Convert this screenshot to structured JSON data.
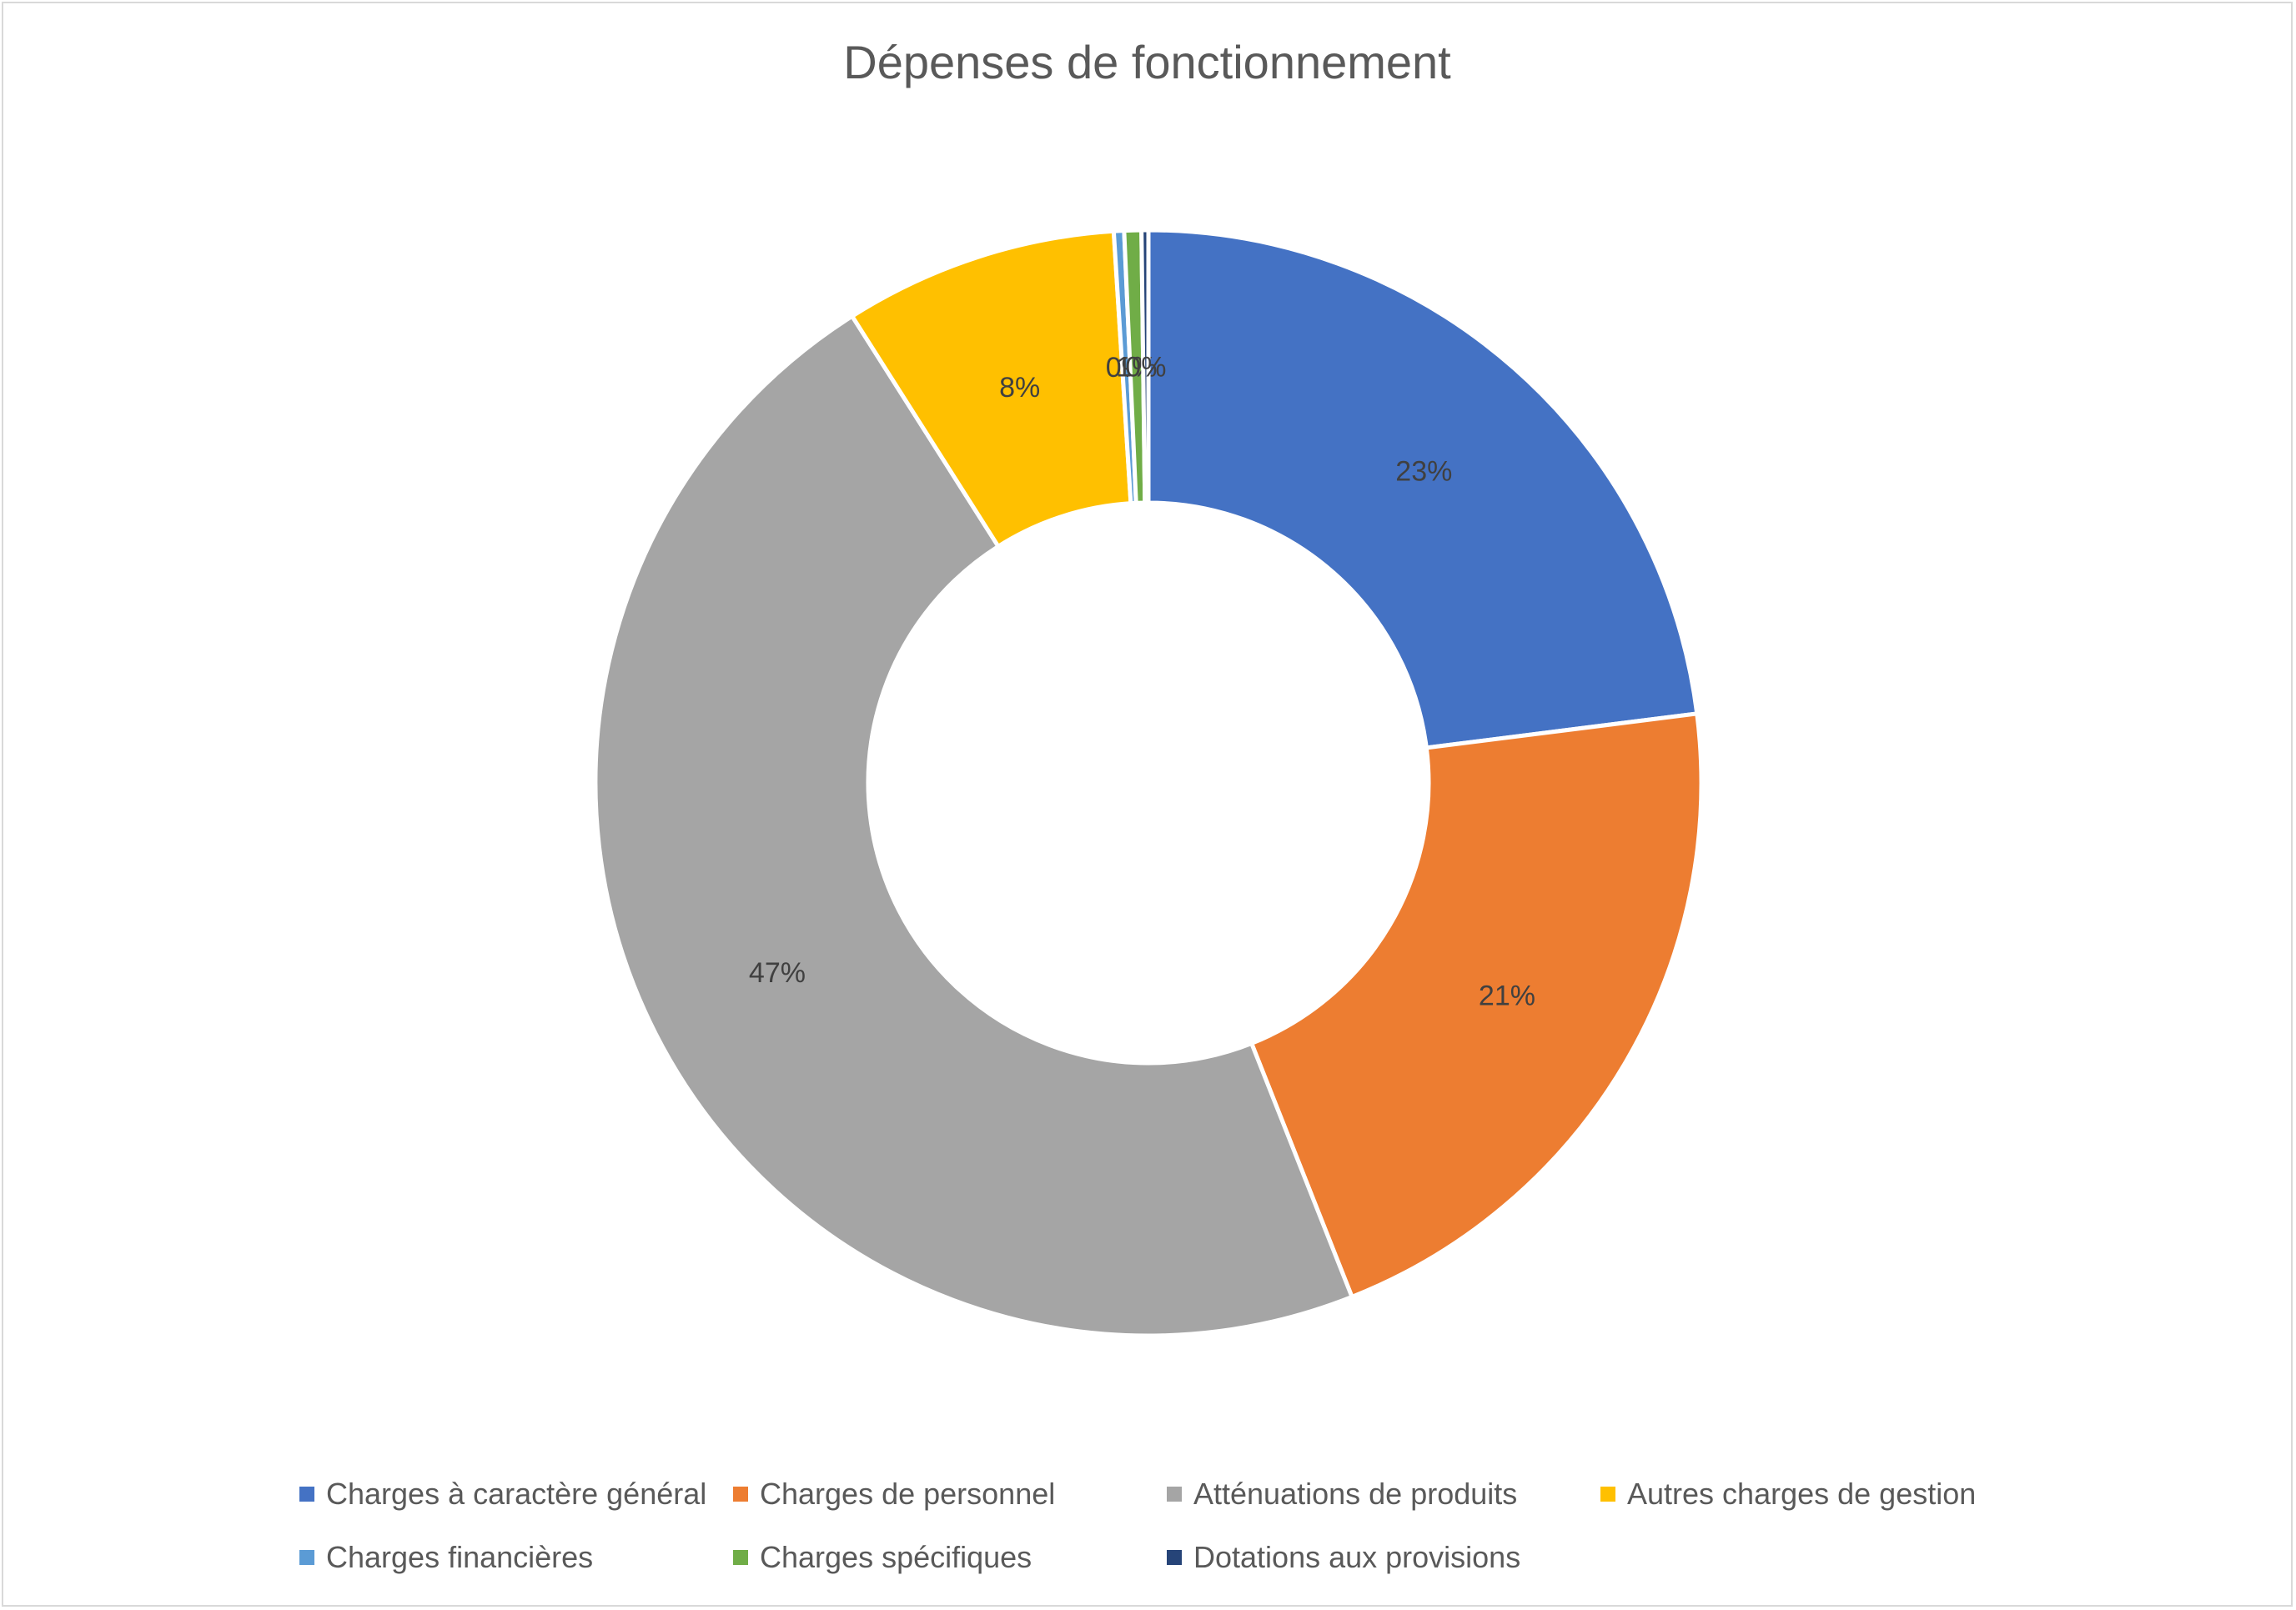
{
  "chart_data": {
    "type": "pie",
    "variant": "donut",
    "title": "Dépenses de fonctionnement",
    "categories": [
      "Charges à caractère général",
      "Charges de personnel",
      "Atténuations de produits",
      "Autres charges de gestion",
      "Charges financières",
      "Charges spécifiques",
      "Dotations aux provisions"
    ],
    "values": [
      23,
      21,
      47,
      8,
      0.3,
      0.5,
      0.2
    ],
    "data_labels": [
      "23%",
      "21%",
      "47%",
      "8%",
      "0%",
      "1%",
      "0%"
    ],
    "colors": [
      "#4472c4",
      "#ed7d31",
      "#a5a5a5",
      "#ffc000",
      "#5b9bd5",
      "#70ad47",
      "#264478"
    ],
    "legend_position": "bottom"
  }
}
